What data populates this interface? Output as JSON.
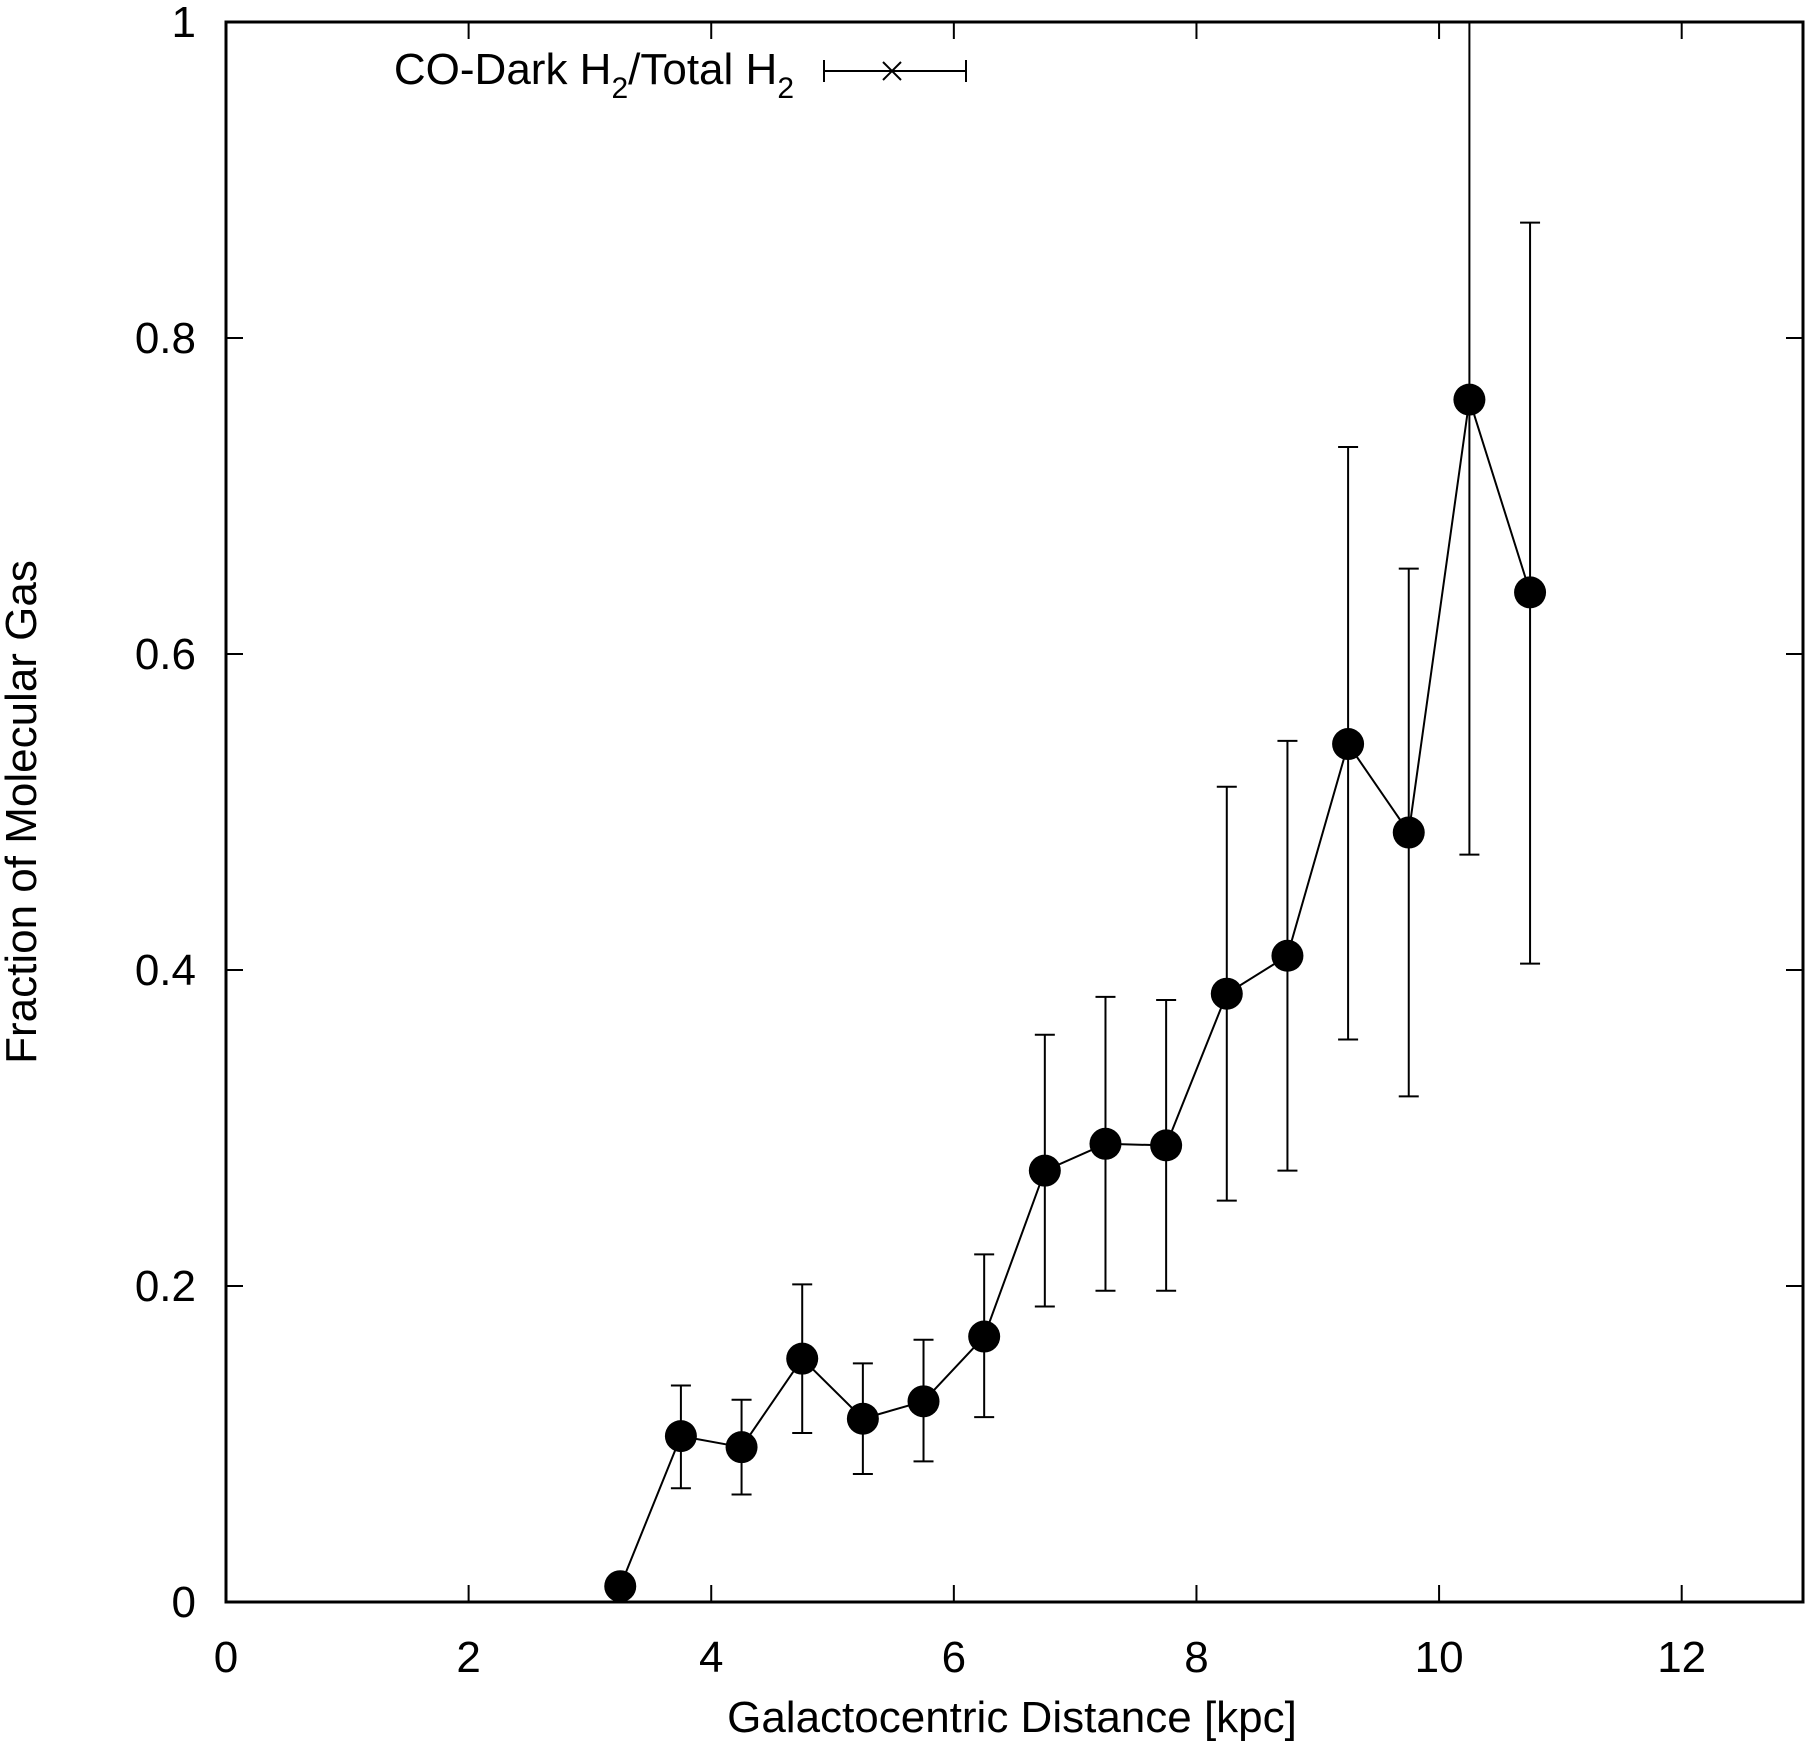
{
  "chart_data": {
    "type": "line",
    "xlabel": "Galactocentric Distance [kpc]",
    "ylabel": "Fraction of Molecular Gas",
    "xlim": [
      0,
      13
    ],
    "ylim": [
      0,
      1
    ],
    "xticks": [
      0,
      2,
      4,
      6,
      8,
      10,
      12
    ],
    "xtick_labels": [
      "0",
      "2",
      "4",
      "6",
      "8",
      "10",
      "12"
    ],
    "yticks": [
      0,
      0.2,
      0.4,
      0.6,
      0.8,
      1
    ],
    "ytick_labels": [
      "0",
      "0.2",
      "0.4",
      "0.6",
      "0.8",
      "1"
    ],
    "legend_position": "top-left",
    "grid": false,
    "series": [
      {
        "name": "CO-Dark H2/Total H2",
        "name_parts": {
          "base1": "CO-Dark H",
          "sub1": "2",
          "base2": "/Total H",
          "sub2": "2"
        },
        "marker": "filled-circle",
        "color": "#000000",
        "points": [
          {
            "x": 3.25,
            "y": 0.01,
            "ylow": null,
            "yhigh": null
          },
          {
            "x": 3.75,
            "y": 0.105,
            "ylow": 0.072,
            "yhigh": 0.137
          },
          {
            "x": 4.25,
            "y": 0.098,
            "ylow": 0.068,
            "yhigh": 0.128
          },
          {
            "x": 4.75,
            "y": 0.154,
            "ylow": 0.107,
            "yhigh": 0.201
          },
          {
            "x": 5.25,
            "y": 0.116,
            "ylow": 0.081,
            "yhigh": 0.151
          },
          {
            "x": 5.75,
            "y": 0.127,
            "ylow": 0.089,
            "yhigh": 0.166
          },
          {
            "x": 6.25,
            "y": 0.168,
            "ylow": 0.117,
            "yhigh": 0.22
          },
          {
            "x": 6.75,
            "y": 0.273,
            "ylow": 0.187,
            "yhigh": 0.359
          },
          {
            "x": 7.25,
            "y": 0.29,
            "ylow": 0.197,
            "yhigh": 0.383
          },
          {
            "x": 7.75,
            "y": 0.289,
            "ylow": 0.197,
            "yhigh": 0.381
          },
          {
            "x": 8.25,
            "y": 0.385,
            "ylow": 0.254,
            "yhigh": 0.516
          },
          {
            "x": 8.75,
            "y": 0.409,
            "ylow": 0.273,
            "yhigh": 0.545
          },
          {
            "x": 9.25,
            "y": 0.543,
            "ylow": 0.356,
            "yhigh": 0.731
          },
          {
            "x": 9.75,
            "y": 0.487,
            "ylow": 0.32,
            "yhigh": 0.654
          },
          {
            "x": 10.25,
            "y": 0.761,
            "ylow": 0.473,
            "yhigh": 1.0
          },
          {
            "x": 10.75,
            "y": 0.639,
            "ylow": 0.404,
            "yhigh": 0.873
          }
        ]
      }
    ]
  }
}
